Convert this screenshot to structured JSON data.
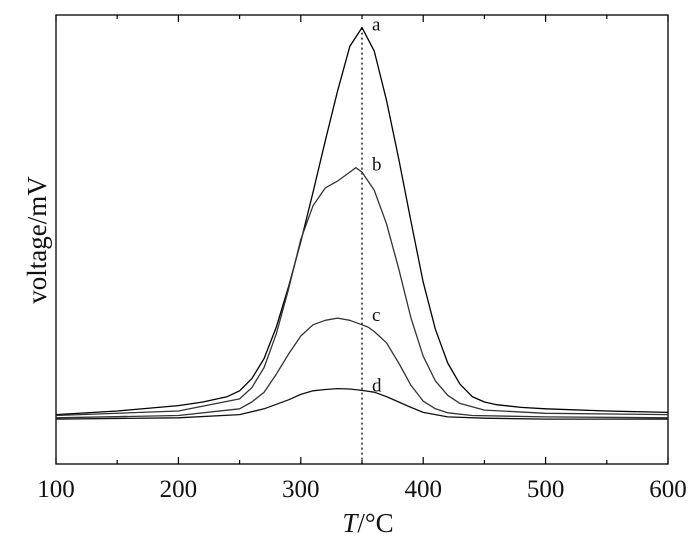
{
  "chart_data": {
    "type": "line",
    "title": "",
    "xlabel_italic": "T",
    "xlabel_unit": "/°C",
    "ylabel": "voltage/mV",
    "xlim": [
      100,
      600
    ],
    "ylim": [
      0,
      100
    ],
    "y_ticks_labeled": false,
    "x_ticks": [
      100,
      200,
      300,
      400,
      500,
      600
    ],
    "x_tick_labels": [
      "100",
      "200",
      "300",
      "400",
      "500",
      "600"
    ],
    "marker_line_x": 350,
    "grid": false,
    "legend": "none",
    "series": [
      {
        "name": "a",
        "color": "#000000",
        "x": [
          100,
          150,
          200,
          220,
          240,
          250,
          260,
          270,
          280,
          290,
          300,
          310,
          320,
          330,
          340,
          350,
          360,
          370,
          380,
          390,
          400,
          410,
          420,
          430,
          440,
          450,
          460,
          480,
          500,
          550,
          600
        ],
        "y": [
          11.0,
          11.8,
          13.0,
          13.8,
          15.0,
          16.3,
          19.0,
          23.5,
          30.5,
          39.5,
          49.5,
          60.5,
          72.0,
          83.0,
          93.0,
          97.2,
          92.0,
          81.0,
          68.0,
          54.0,
          40.5,
          30.0,
          22.5,
          17.8,
          15.0,
          13.8,
          13.2,
          12.6,
          12.3,
          11.8,
          11.5
        ]
      },
      {
        "name": "b",
        "color": "#333333",
        "x": [
          100,
          200,
          250,
          260,
          270,
          280,
          290,
          300,
          310,
          320,
          330,
          340,
          345,
          350,
          360,
          370,
          380,
          390,
          400,
          410,
          420,
          430,
          450,
          500,
          600
        ],
        "y": [
          10.8,
          11.8,
          14.5,
          17.0,
          21.5,
          29.0,
          39.0,
          50.0,
          57.5,
          61.5,
          63.0,
          65.0,
          66.0,
          65.0,
          61.0,
          53.5,
          43.5,
          32.5,
          24.0,
          18.5,
          15.3,
          13.5,
          12.0,
          11.3,
          11.0
        ]
      },
      {
        "name": "c",
        "color": "#333333",
        "x": [
          100,
          200,
          250,
          260,
          270,
          280,
          290,
          300,
          310,
          320,
          330,
          340,
          350,
          355,
          360,
          370,
          380,
          390,
          400,
          410,
          420,
          440,
          500,
          600
        ],
        "y": [
          10.3,
          10.8,
          12.3,
          13.8,
          16.0,
          20.0,
          24.5,
          28.5,
          31.0,
          32.0,
          32.5,
          32.0,
          31.0,
          30.5,
          29.5,
          27.0,
          22.5,
          17.5,
          14.0,
          12.3,
          11.4,
          10.8,
          10.5,
          10.3
        ]
      },
      {
        "name": "d",
        "color": "#111111",
        "x": [
          100,
          200,
          250,
          270,
          290,
          300,
          310,
          320,
          330,
          340,
          350,
          360,
          370,
          380,
          390,
          400,
          420,
          450,
          500,
          600
        ],
        "y": [
          10.0,
          10.3,
          11.0,
          12.3,
          14.3,
          15.5,
          16.3,
          16.6,
          16.8,
          16.7,
          16.4,
          16.0,
          15.0,
          13.8,
          12.6,
          11.5,
          10.5,
          10.2,
          10.0,
          10.0
        ]
      }
    ]
  }
}
